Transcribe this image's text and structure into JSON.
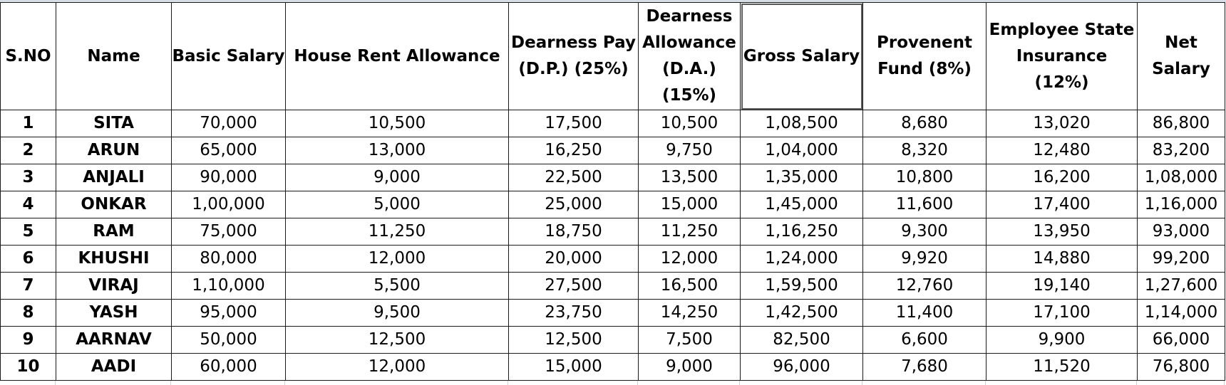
{
  "headers": [
    "S.NO",
    "Name",
    "Basic Salary",
    "House Rent Allowance",
    "Dearness Pay (D.P.) (25%)",
    "Dearness Allowance (D.A.) (15%)",
    "Gross Salary",
    "Provenent Fund (8%)",
    "Employee State Insurance (12%)",
    "Net Salary"
  ],
  "rows": [
    [
      "1",
      "SITA",
      "70,000",
      "10,500",
      "17,500",
      "10,500",
      "1,08,500",
      "8,680",
      "13,020",
      "86,800"
    ],
    [
      "2",
      "ARUN",
      "65,000",
      "13,000",
      "16,250",
      "9,750",
      "1,04,000",
      "8,320",
      "12,480",
      "83,200"
    ],
    [
      "3",
      "ANJALI",
      "90,000",
      "9,000",
      "22,500",
      "13,500",
      "1,35,000",
      "10,800",
      "16,200",
      "1,08,000"
    ],
    [
      "4",
      "ONKAR",
      "1,00,000",
      "5,000",
      "25,000",
      "15,000",
      "1,45,000",
      "11,600",
      "17,400",
      "1,16,000"
    ],
    [
      "5",
      "RAM",
      "75,000",
      "11,250",
      "18,750",
      "11,250",
      "1,16,250",
      "9,300",
      "13,950",
      "93,000"
    ],
    [
      "6",
      "KHUSHI",
      "80,000",
      "12,000",
      "20,000",
      "12,000",
      "1,24,000",
      "9,920",
      "14,880",
      "99,200"
    ],
    [
      "7",
      "VIRAJ",
      "1,10,000",
      "5,500",
      "27,500",
      "16,500",
      "1,59,500",
      "12,760",
      "19,140",
      "1,27,600"
    ],
    [
      "8",
      "YASH",
      "95,000",
      "9,500",
      "23,750",
      "14,250",
      "1,42,500",
      "11,400",
      "17,100",
      "1,14,000"
    ],
    [
      "9",
      "AARNAV",
      "50,000",
      "12,500",
      "12,500",
      "7,500",
      "82,500",
      "6,600",
      "9,900",
      "66,000"
    ],
    [
      "10",
      "AADI",
      "60,000",
      "12,000",
      "15,000",
      "9,000",
      "96,000",
      "7,680",
      "11,520",
      "76,800"
    ]
  ]
}
